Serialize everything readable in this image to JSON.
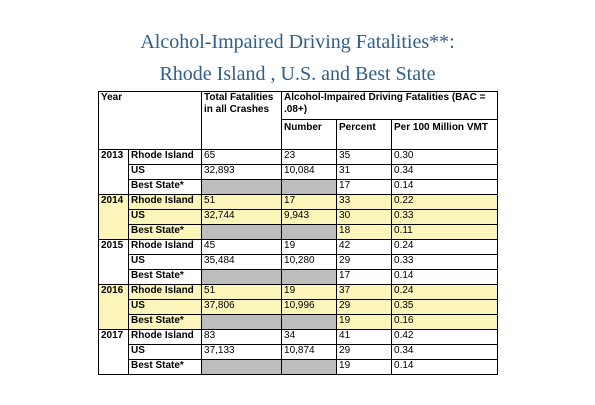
{
  "title_line1": "Alcohol-Impaired Driving Fatalities**:",
  "title_line2": "Rhode Island , U.S. and Best State",
  "colors": {
    "title": "#2e5e8a",
    "highlight": "#fbf5ba",
    "grey": "#bdbdbd"
  },
  "headers": {
    "year": "Year",
    "total": "Total Fatalities in all Crashes",
    "aid": "Alcohol-Impaired Driving Fatalities (BAC = .08+)",
    "number": "Number",
    "percent": "Percent",
    "per100": "Per 100 Million VMT"
  },
  "years": [
    {
      "year": "2013",
      "highlight": false,
      "rows": [
        {
          "state": "Rhode Island",
          "total": "65",
          "number": "23",
          "percent": "35",
          "per100": "0.30"
        },
        {
          "state": "US",
          "total": "32,893",
          "number": "10,084",
          "percent": "31",
          "per100": "0.34"
        },
        {
          "state": "Best State*",
          "total": "",
          "number": "",
          "percent": "17",
          "per100": "0.14"
        }
      ]
    },
    {
      "year": "2014",
      "highlight": true,
      "rows": [
        {
          "state": "Rhode Island",
          "total": "51",
          "number": "17",
          "percent": "33",
          "per100": "0.22"
        },
        {
          "state": "US",
          "total": "32,744",
          "number": "9,943",
          "percent": "30",
          "per100": "0.33"
        },
        {
          "state": "Best State*",
          "total": "",
          "number": "",
          "percent": "18",
          "per100": "0.11"
        }
      ]
    },
    {
      "year": "2015",
      "highlight": false,
      "rows": [
        {
          "state": "Rhode Island",
          "total": "45",
          "number": "19",
          "percent": "42",
          "per100": "0.24"
        },
        {
          "state": "US",
          "total": "35,484",
          "number": "10,280",
          "percent": "29",
          "per100": "0.33"
        },
        {
          "state": "Best State*",
          "total": "",
          "number": "",
          "percent": "17",
          "per100": "0.14"
        }
      ]
    },
    {
      "year": "2016",
      "highlight": true,
      "rows": [
        {
          "state": "Rhode Island",
          "total": "51",
          "number": "19",
          "percent": "37",
          "per100": "0.24"
        },
        {
          "state": "US",
          "total": "37,806",
          "number": "10,996",
          "percent": "29",
          "per100": "0.35"
        },
        {
          "state": "Best State*",
          "total": "",
          "number": "",
          "percent": "19",
          "per100": "0.16"
        }
      ]
    },
    {
      "year": "2017",
      "highlight": false,
      "rows": [
        {
          "state": "Rhode Island",
          "total": "83",
          "number": "34",
          "percent": "41",
          "per100": "0.42"
        },
        {
          "state": "US",
          "total": "37,133",
          "number": "10,874",
          "percent": "29",
          "per100": "0.34"
        },
        {
          "state": "Best State*",
          "total": "",
          "number": "",
          "percent": "19",
          "per100": "0.14"
        }
      ]
    }
  ]
}
